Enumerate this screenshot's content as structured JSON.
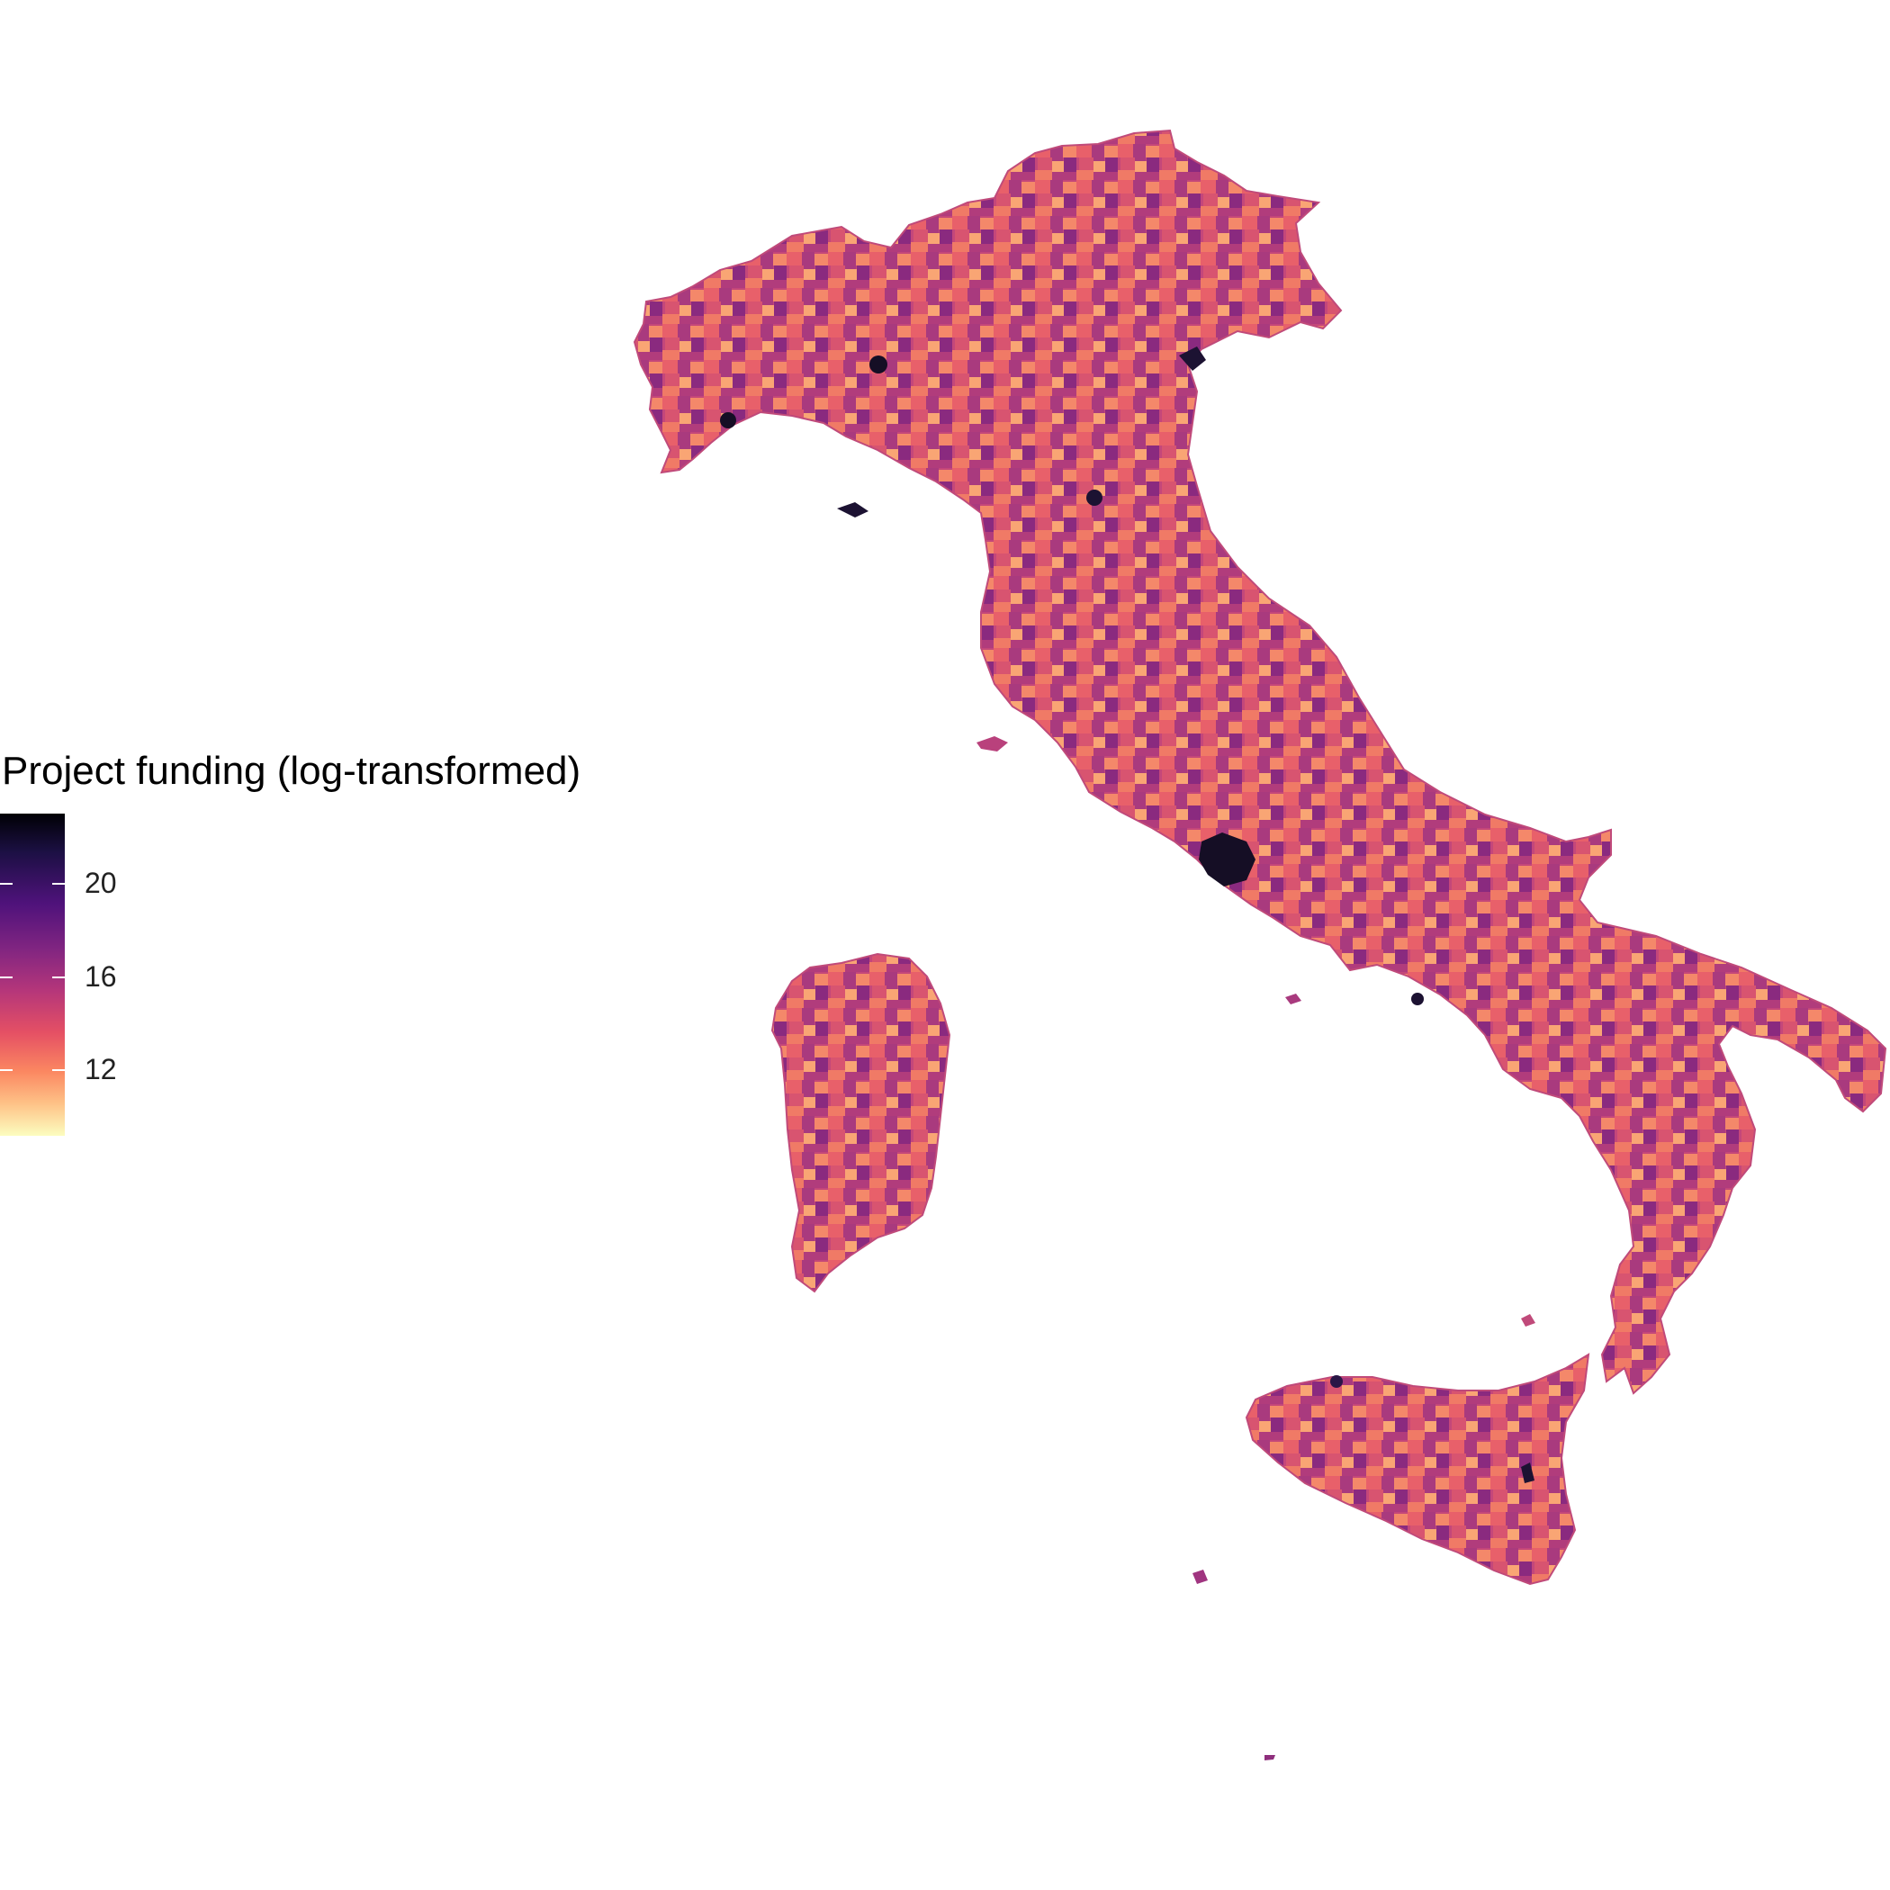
{
  "legend": {
    "title": "Project funding (log-transformed)",
    "ticks": [
      {
        "label": "20",
        "value": 20
      },
      {
        "label": "16",
        "value": 16
      },
      {
        "label": "12",
        "value": 12
      }
    ],
    "range": [
      9.2,
      23
    ]
  },
  "colors": {
    "scale": [
      "#000004",
      "#1c1044",
      "#4f127b",
      "#812581",
      "#b5367a",
      "#e55064",
      "#fb8761",
      "#fec287",
      "#fcfdbf"
    ],
    "background": "#ffffff"
  }
}
